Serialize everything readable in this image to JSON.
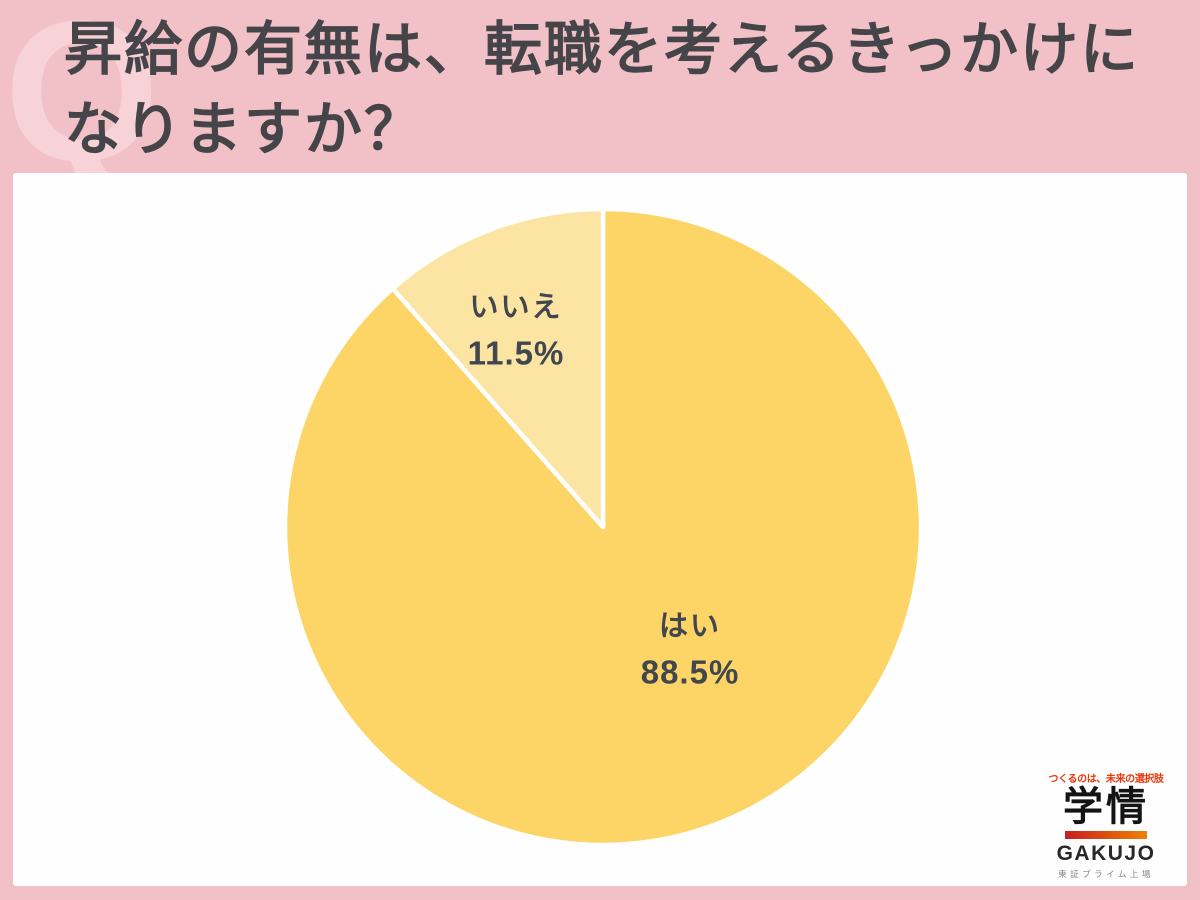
{
  "page": {
    "background_color": "#F2C1C7",
    "watermark_letter": "Q"
  },
  "header": {
    "title_line1": "昇給の有無は、転職を考えるきっかけに",
    "title_line2": "なりますか？",
    "title_full": "昇給の有無は、転職を考えるきっかけになりますか？"
  },
  "chart_data": {
    "type": "pie",
    "title": "昇給の有無は、転職を考えるきっかけになりますか？",
    "slices": [
      {
        "label": "はい",
        "value": 88.5,
        "value_label": "88.5%",
        "color": "#FCD566"
      },
      {
        "label": "いいえ",
        "value": 11.5,
        "value_label": "11.5%",
        "color": "#FCE5A2"
      }
    ],
    "start_angle_deg": 0,
    "direction": "clockwise",
    "labels_position": "inside",
    "legend": "none",
    "divider_color": "#FFFFFF",
    "label_text_color": "#42474F"
  },
  "logo": {
    "tagline": "つくるのは、未来の選択肢",
    "brand_kanji": "学情",
    "brand_roman": "GAKUJO",
    "listing": "東証プライム上場",
    "accent_red": "#E8380D",
    "bar_gradient_from": "#C91D23",
    "bar_gradient_to": "#EF8200"
  }
}
